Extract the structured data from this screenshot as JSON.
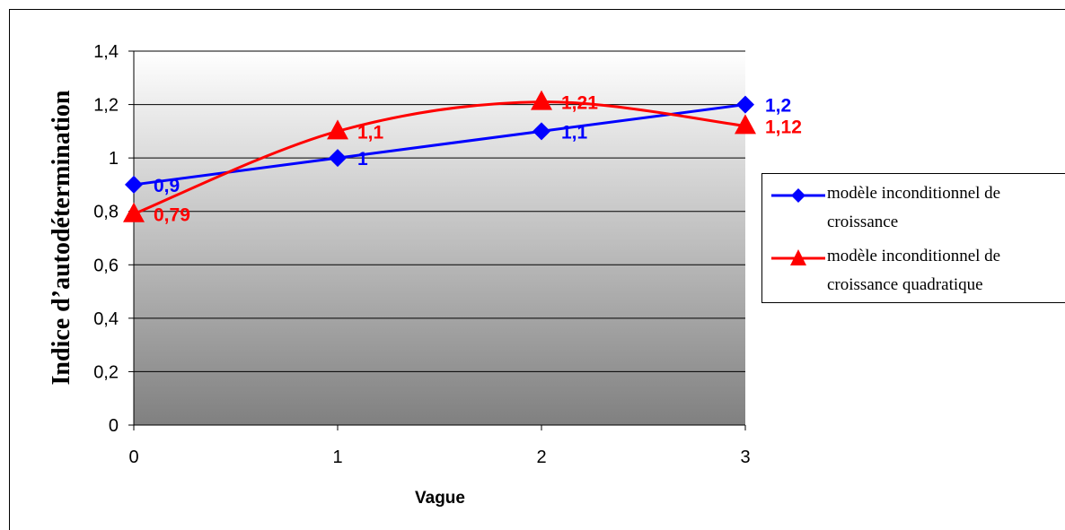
{
  "chart_data": {
    "type": "line",
    "x": [
      0,
      1,
      2,
      3
    ],
    "xlabel": "Vague",
    "ylabel": "Indice d’autodétermination",
    "ylim": [
      0,
      1.4
    ],
    "yticks": [
      "0",
      "0,2",
      "0,4",
      "0,6",
      "0,8",
      "1",
      "1,2",
      "1,4"
    ],
    "xticks": [
      "0",
      "1",
      "2",
      "3"
    ],
    "grid": true,
    "legend_position": "right",
    "series": [
      {
        "name": "modèle inconditionnel de croissance",
        "values": [
          0.9,
          1.0,
          1.1,
          1.2
        ],
        "labels": [
          "0,9",
          "1",
          "1,1",
          "1,2"
        ],
        "color": "#0000ff",
        "marker": "diamond"
      },
      {
        "name": "modèle inconditionnel de croissance quadratique",
        "values": [
          0.79,
          1.1,
          1.21,
          1.12
        ],
        "labels": [
          "0,79",
          "1,1",
          "1,21",
          "1,12"
        ],
        "color": "#ff0000",
        "marker": "triangle"
      }
    ]
  }
}
